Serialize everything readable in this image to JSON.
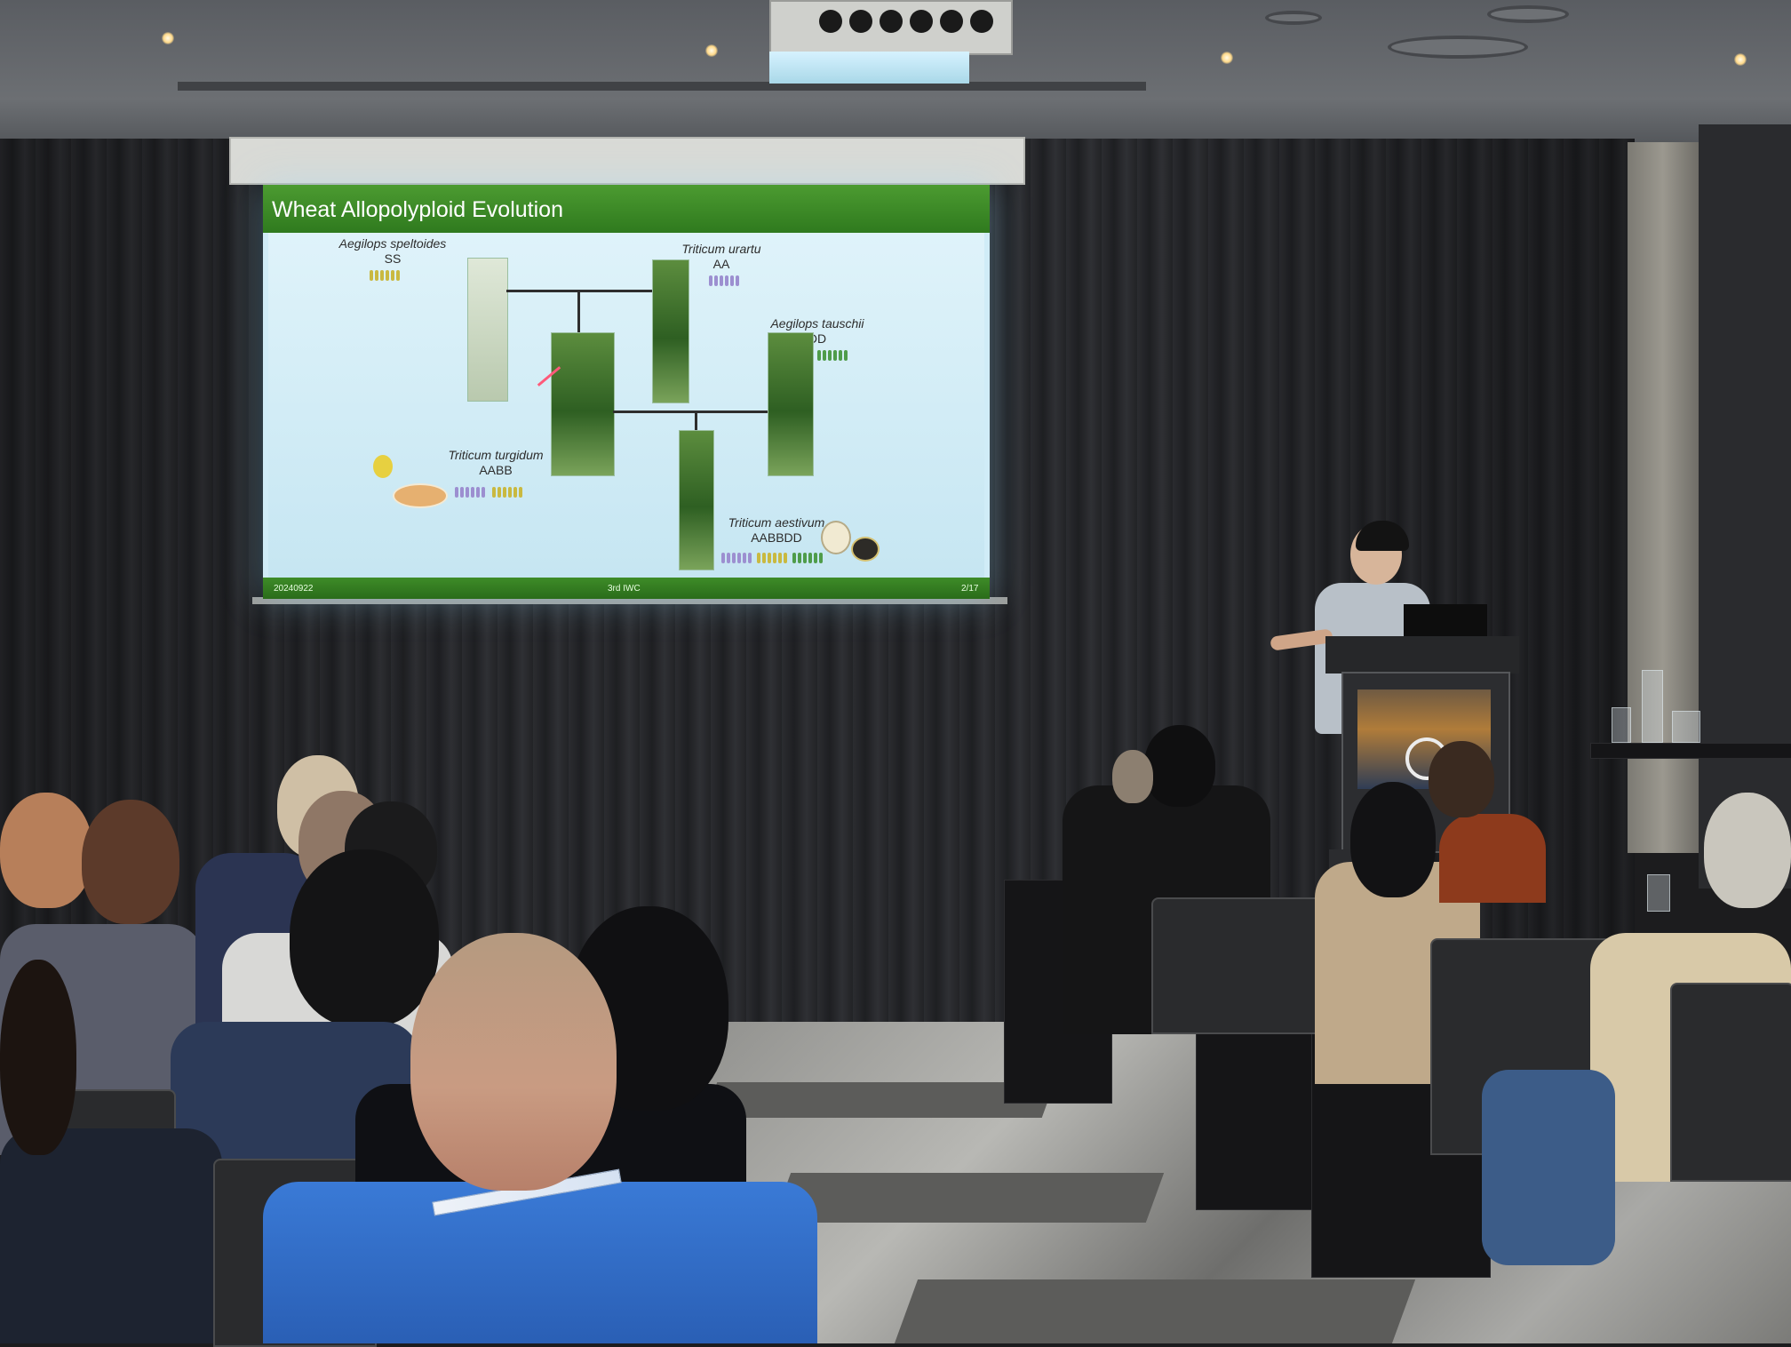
{
  "slide": {
    "title": "Wheat Allopolyploid Evolution",
    "species": [
      {
        "name": "Aegilops speltoides",
        "genome": "SS"
      },
      {
        "name": "Triticum urartu",
        "genome": "AA"
      },
      {
        "name": "Aegilops tauschii",
        "genome": "DD"
      },
      {
        "name": "Triticum turgidum",
        "genome": "AABB"
      },
      {
        "name": "Triticum aestivum",
        "genome": "AABBDD"
      }
    ],
    "footer": {
      "date": "20240922",
      "event": "3rd IWC",
      "page": "2/17"
    }
  },
  "colors": {
    "slide_header": "#2f7a1e",
    "slide_background": "#d0ecf7",
    "curtain": "#26272a",
    "presenter_shirt": "#b8c0c8",
    "audience_shirt_blue": "#2f6fcf"
  },
  "icons": [
    "projector-icon",
    "globe-logo-icon"
  ]
}
